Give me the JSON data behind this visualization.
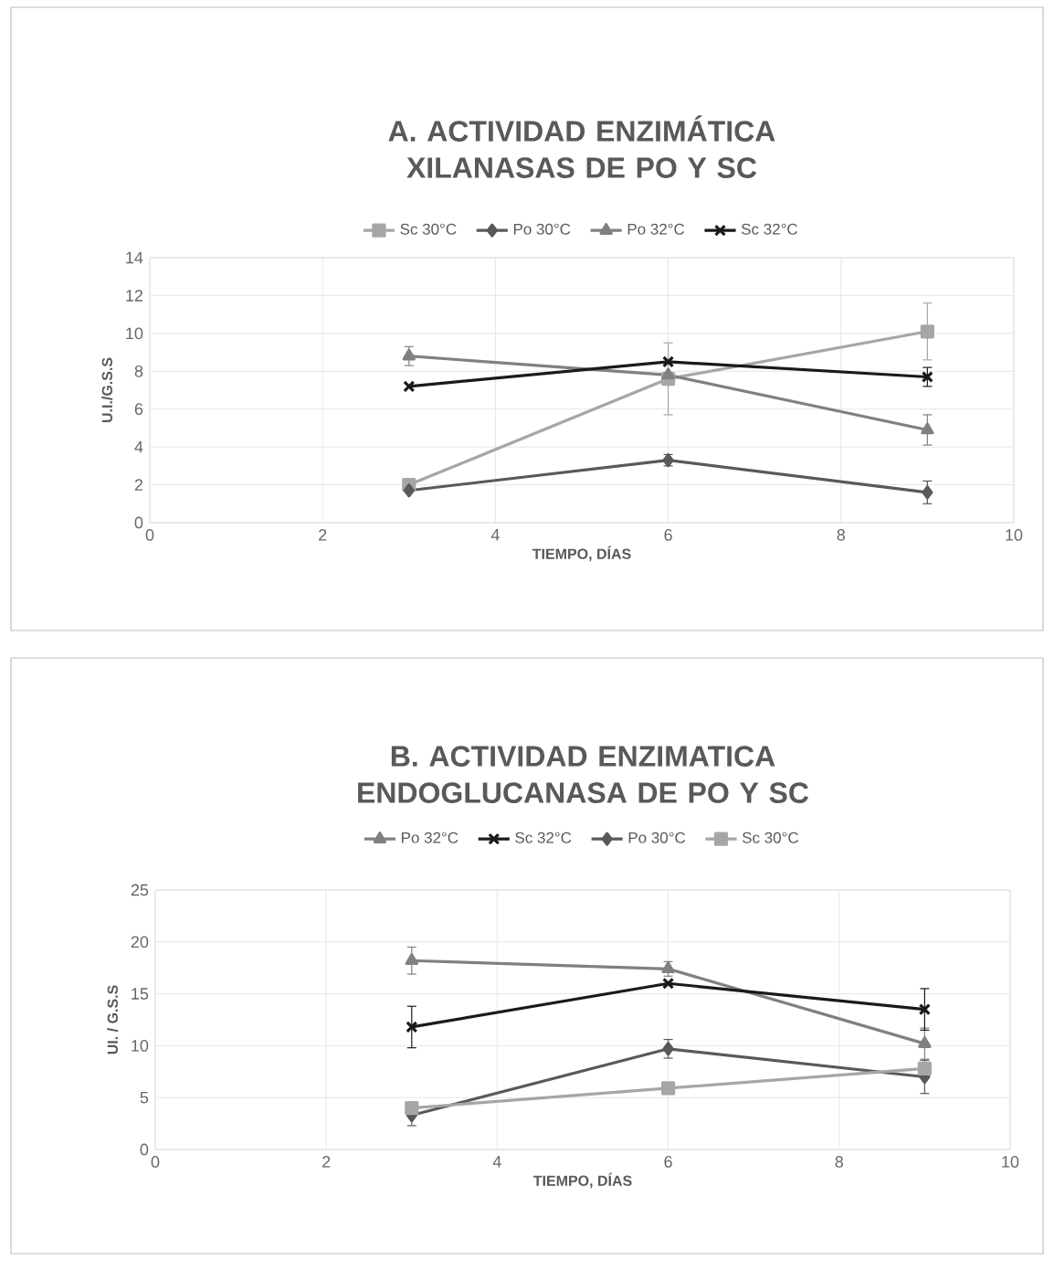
{
  "chart_data": [
    {
      "type": "line",
      "title": "A. ACTIVIDAD ENZIMÁTICA XILANASAS DE PO Y SC",
      "xlabel": "TIEMPO, DÍAS",
      "ylabel": "U.I./G.S.S",
      "xlim": [
        0,
        10
      ],
      "xticks": [
        0,
        2,
        4,
        6,
        8,
        10
      ],
      "ylim": [
        0,
        14
      ],
      "yticks": [
        0,
        2,
        4,
        6,
        8,
        10,
        12,
        14
      ],
      "grid": true,
      "legend": "top",
      "x": [
        3,
        6,
        9
      ],
      "series": [
        {
          "name": "Sc 30°C",
          "color": "#a6a6a6",
          "marker": "square",
          "values": [
            2.0,
            7.6,
            10.1
          ],
          "errors": [
            null,
            1.9,
            1.5
          ]
        },
        {
          "name": "Po 30°C",
          "color": "#595959",
          "marker": "diamond",
          "values": [
            1.7,
            3.3,
            1.6
          ],
          "errors": [
            null,
            0.3,
            0.6
          ]
        },
        {
          "name": "Po 32°C",
          "color": "#808080",
          "marker": "triangle",
          "values": [
            8.8,
            7.8,
            4.9
          ],
          "errors": [
            0.5,
            null,
            0.8
          ]
        },
        {
          "name": "Sc 32°C",
          "color": "#1a1a1a",
          "marker": "cross",
          "values": [
            7.2,
            8.5,
            7.7
          ],
          "errors": [
            null,
            null,
            0.5
          ]
        }
      ]
    },
    {
      "type": "line",
      "title": "B. ACTIVIDAD ENZIMATICA ENDOGLUCANASA DE PO Y SC",
      "xlabel": "TIEMPO, DÍAS",
      "ylabel": "UI. / G.S.S",
      "xlim": [
        0,
        10
      ],
      "xticks": [
        0,
        2,
        4,
        6,
        8,
        10
      ],
      "ylim": [
        0,
        25
      ],
      "yticks": [
        0,
        5,
        10,
        15,
        20,
        25
      ],
      "grid": true,
      "legend": "top",
      "x": [
        3,
        6,
        9
      ],
      "series": [
        {
          "name": "Po 32°C",
          "color": "#808080",
          "marker": "triangle",
          "values": [
            18.2,
            17.4,
            10.2
          ],
          "errors": [
            1.3,
            0.7,
            1.5
          ]
        },
        {
          "name": "Sc 32°C",
          "color": "#1a1a1a",
          "marker": "cross",
          "values": [
            11.8,
            16.0,
            13.5
          ],
          "errors": [
            2.0,
            null,
            2.0
          ]
        },
        {
          "name": "Po 30°C",
          "color": "#595959",
          "marker": "diamond",
          "values": [
            3.3,
            9.7,
            7.0
          ],
          "errors": [
            1.0,
            0.9,
            1.6
          ]
        },
        {
          "name": "Sc 30°C",
          "color": "#a6a6a6",
          "marker": "square",
          "values": [
            4.0,
            5.9,
            7.8
          ]
        }
      ]
    }
  ]
}
